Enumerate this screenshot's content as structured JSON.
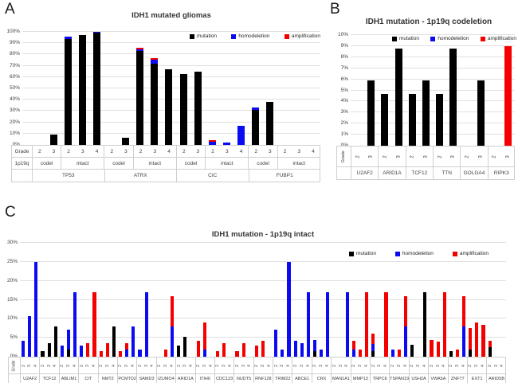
{
  "figure": {
    "panel_labels": [
      "A",
      "B",
      "C"
    ]
  },
  "chart_data": [
    {
      "panel": "A",
      "type": "stacked-bar",
      "title": "IDH1 mutated gliomas",
      "ylim": [
        0,
        100
      ],
      "ytick_step": 10,
      "ytick_suffix": "%",
      "grid": true,
      "legend_position": "top-right-inside",
      "series": [
        {
          "key": "m",
          "label": "mutation",
          "color": "#000000"
        },
        {
          "key": "h",
          "label": "homodeletion",
          "color": "#0b0bf2"
        },
        {
          "key": "a",
          "label": "amplification",
          "color": "#f40000"
        }
      ],
      "row_labels": [
        "Grade",
        "1p19q"
      ],
      "groups": [
        {
          "gene": "TP53",
          "sections": [
            {
              "label": "codel",
              "bars": [
                {
                  "grade": "2"
                },
                {
                  "grade": "3",
                  "m": 9
                }
              ]
            },
            {
              "label": "intact",
              "bars": [
                {
                  "grade": "2",
                  "m": 94,
                  "h": 2
                },
                {
                  "grade": "3",
                  "m": 97
                },
                {
                  "grade": "4",
                  "m": 99,
                  "h": 1
                }
              ]
            }
          ]
        },
        {
          "gene": "ATRX",
          "sections": [
            {
              "label": "codel",
              "bars": [
                {
                  "grade": "2"
                },
                {
                  "grade": "3",
                  "m": 6
                }
              ]
            },
            {
              "label": "intact",
              "bars": [
                {
                  "grade": "2",
                  "m": 83,
                  "h": 1.8,
                  "a": 1.2
                },
                {
                  "grade": "3",
                  "m": 72,
                  "h": 3.5,
                  "a": 1.5
                },
                {
                  "grade": "4",
                  "m": 67
                }
              ]
            }
          ]
        },
        {
          "gene": "CIC",
          "sections": [
            {
              "label": "codel",
              "bars": [
                {
                  "grade": "2",
                  "m": 62.5
                },
                {
                  "grade": "3",
                  "m": 64.5
                }
              ]
            },
            {
              "label": "intact",
              "bars": [
                {
                  "grade": "2",
                  "h": 3,
                  "a": 1.5
                },
                {
                  "grade": "3",
                  "h": 1.8
                },
                {
                  "grade": "4",
                  "h": 17
                }
              ]
            }
          ]
        },
        {
          "gene": "FUBP1",
          "sections": [
            {
              "label": "codel",
              "bars": [
                {
                  "grade": "2",
                  "m": 31,
                  "h": 2
                },
                {
                  "grade": "3",
                  "m": 38
                }
              ]
            },
            {
              "label": "intact",
              "bars": [
                {
                  "grade": "2"
                },
                {
                  "grade": "3"
                },
                {
                  "grade": "4"
                }
              ]
            }
          ]
        }
      ]
    },
    {
      "panel": "B",
      "type": "stacked-bar",
      "title": "IDH1 mutation - 1p19q codeletion",
      "ylim": [
        0,
        10
      ],
      "ytick_step": 1,
      "ytick_suffix": "%",
      "grid": true,
      "legend_position": "top-inside",
      "series": [
        {
          "key": "m",
          "label": "mutation",
          "color": "#000000"
        },
        {
          "key": "h",
          "label": "homodeletion",
          "color": "#0b0bf2"
        },
        {
          "key": "a",
          "label": "amplification",
          "color": "#f40000"
        }
      ],
      "row_labels": [
        "Grade"
      ],
      "groups": [
        {
          "gene": "U2AF2",
          "bars": [
            {
              "grade": "2"
            },
            {
              "grade": "3",
              "m": 5.9
            }
          ]
        },
        {
          "gene": "ARID1A",
          "bars": [
            {
              "grade": "2",
              "m": 4.7
            },
            {
              "grade": "3",
              "m": 8.8
            }
          ]
        },
        {
          "gene": "TCF12",
          "bars": [
            {
              "grade": "2",
              "m": 4.7
            },
            {
              "grade": "3",
              "m": 5.9
            }
          ]
        },
        {
          "gene": "TTN",
          "bars": [
            {
              "grade": "2",
              "m": 4.7
            },
            {
              "grade": "3",
              "m": 8.8
            }
          ]
        },
        {
          "gene": "GOLGA4",
          "bars": [
            {
              "grade": "2"
            },
            {
              "grade": "3",
              "m": 5.9
            }
          ]
        },
        {
          "gene": "RIPK3",
          "bars": [
            {
              "grade": "2"
            },
            {
              "grade": "3",
              "a": 9
            }
          ]
        }
      ]
    },
    {
      "panel": "C",
      "type": "stacked-bar",
      "title": "IDH1 mutation - 1p19q intact",
      "ylim": [
        0,
        30
      ],
      "ytick_step": 5,
      "ytick_suffix": "%",
      "grid": true,
      "legend_position": "top-right-inside",
      "series": [
        {
          "key": "m",
          "label": "mutation",
          "color": "#000000"
        },
        {
          "key": "h",
          "label": "homodeletion",
          "color": "#0b0bf2"
        },
        {
          "key": "a",
          "label": "amplification",
          "color": "#f40000"
        }
      ],
      "row_labels": [
        "Grade"
      ],
      "groups": [
        {
          "gene": "U2AF2",
          "bars": [
            {
              "grade": "2",
              "h": 4.3
            },
            {
              "grade": "3",
              "h": 10.7
            },
            {
              "grade": "4",
              "h": 25
            }
          ]
        },
        {
          "gene": "TCF12",
          "bars": [
            {
              "grade": "2",
              "m": 1.5
            },
            {
              "grade": "3",
              "m": 3.6
            },
            {
              "grade": "4",
              "m": 8
            }
          ]
        },
        {
          "gene": "ABLIM1",
          "bars": [
            {
              "grade": "2",
              "h": 2.9
            },
            {
              "grade": "3",
              "m": 1.8,
              "h": 5.4
            },
            {
              "grade": "4",
              "h": 17
            }
          ]
        },
        {
          "gene": "CIT",
          "bars": [
            {
              "grade": "2",
              "h": 2.9
            },
            {
              "grade": "3",
              "a": 3.6
            },
            {
              "grade": "4",
              "a": 17
            }
          ]
        },
        {
          "gene": "NMT2",
          "bars": [
            {
              "grade": "2",
              "a": 1.5
            },
            {
              "grade": "3",
              "a": 3.6
            },
            {
              "grade": "4",
              "m": 8
            }
          ]
        },
        {
          "gene": "PCMTD2",
          "bars": [
            {
              "grade": "2",
              "a": 1.5
            },
            {
              "grade": "3",
              "h": 1.8,
              "a": 1.8
            },
            {
              "grade": "4",
              "h": 8
            }
          ]
        },
        {
          "gene": "SAMD3",
          "bars": [
            {
              "grade": "2",
              "h": 1.8
            },
            {
              "grade": "3",
              "h": 17
            },
            {
              "grade": "4"
            }
          ]
        },
        {
          "gene": "IZUMO4",
          "bars": [
            {
              "grade": "2"
            },
            {
              "grade": "3",
              "a": 1.8
            },
            {
              "grade": "4",
              "h": 8,
              "a": 8
            }
          ]
        },
        {
          "gene": "ARID1A",
          "bars": [
            {
              "grade": "2",
              "m": 2.9
            },
            {
              "grade": "3",
              "m": 5.3
            },
            {
              "grade": "4"
            }
          ]
        },
        {
          "gene": "ITIH6",
          "bars": [
            {
              "grade": "2",
              "a": 4.3
            },
            {
              "grade": "3",
              "h": 1.8,
              "a": 7.2
            },
            {
              "grade": "4"
            }
          ]
        },
        {
          "gene": "CDC123",
          "bars": [
            {
              "grade": "2",
              "a": 1.5
            },
            {
              "grade": "3",
              "a": 3.6
            },
            {
              "grade": "4"
            }
          ]
        },
        {
          "gene": "NUDT5",
          "bars": [
            {
              "grade": "2",
              "a": 1.5
            },
            {
              "grade": "3",
              "a": 3.6
            },
            {
              "grade": "4"
            }
          ]
        },
        {
          "gene": "RNF128",
          "bars": [
            {
              "grade": "2",
              "a": 2.9
            },
            {
              "grade": "3",
              "a": 4.3
            },
            {
              "grade": "4"
            }
          ]
        },
        {
          "gene": "TRIM22",
          "bars": [
            {
              "grade": "2",
              "h": 7.2
            },
            {
              "grade": "3",
              "h": 1.8
            },
            {
              "grade": "4",
              "h": 25
            }
          ]
        },
        {
          "gene": "ABCE1",
          "bars": [
            {
              "grade": "2",
              "h": 4.3
            },
            {
              "grade": "3",
              "h": 3.6
            },
            {
              "grade": "4",
              "h": 17
            }
          ]
        },
        {
          "gene": "CRX",
          "bars": [
            {
              "grade": "2",
              "m": 1.5,
              "h": 2.9
            },
            {
              "grade": "3",
              "h": 1.8
            },
            {
              "grade": "4",
              "h": 17
            }
          ]
        },
        {
          "gene": "MAN1A1",
          "bars": [
            {
              "grade": "2"
            },
            {
              "grade": "3"
            },
            {
              "grade": "4",
              "h": 17
            }
          ]
        },
        {
          "gene": "MMP13",
          "bars": [
            {
              "grade": "2",
              "h": 1.8,
              "a": 2.5
            },
            {
              "grade": "3",
              "a": 1.8
            },
            {
              "grade": "4",
              "a": 17
            }
          ]
        },
        {
          "gene": "TRPC6",
          "bars": [
            {
              "grade": "2",
              "m": 1.5,
              "h": 1.8,
              "a": 2.7
            },
            {
              "grade": "3"
            },
            {
              "grade": "4",
              "a": 17
            }
          ]
        },
        {
          "gene": "TSPAN19",
          "bars": [
            {
              "grade": "2",
              "h": 1.8
            },
            {
              "grade": "3",
              "a": 1.8
            },
            {
              "grade": "4",
              "h": 8,
              "a": 8
            }
          ]
        },
        {
          "gene": "USH2A",
          "bars": [
            {
              "grade": "2",
              "m": 3.2
            },
            {
              "grade": "3"
            },
            {
              "grade": "4",
              "m": 17
            }
          ]
        },
        {
          "gene": "VWA5A",
          "bars": [
            {
              "grade": "2",
              "a": 4.5
            },
            {
              "grade": "3",
              "a": 3.9
            },
            {
              "grade": "4",
              "a": 17
            }
          ]
        },
        {
          "gene": "ZNF77",
          "bars": [
            {
              "grade": "2",
              "m": 1.5
            },
            {
              "grade": "3",
              "a": 1.8
            },
            {
              "grade": "4",
              "h": 8,
              "a": 8
            }
          ]
        },
        {
          "gene": "EXT1",
          "bars": [
            {
              "grade": "2",
              "m": 1.8,
              "a": 5.7
            },
            {
              "grade": "3",
              "a": 9
            },
            {
              "grade": "4",
              "a": 8.4
            }
          ]
        },
        {
          "gene": "ARID5B",
          "bars": [
            {
              "grade": "2",
              "m": 2.5,
              "a": 1.8
            },
            {
              "grade": "3"
            },
            {
              "grade": "4"
            }
          ]
        }
      ]
    }
  ]
}
